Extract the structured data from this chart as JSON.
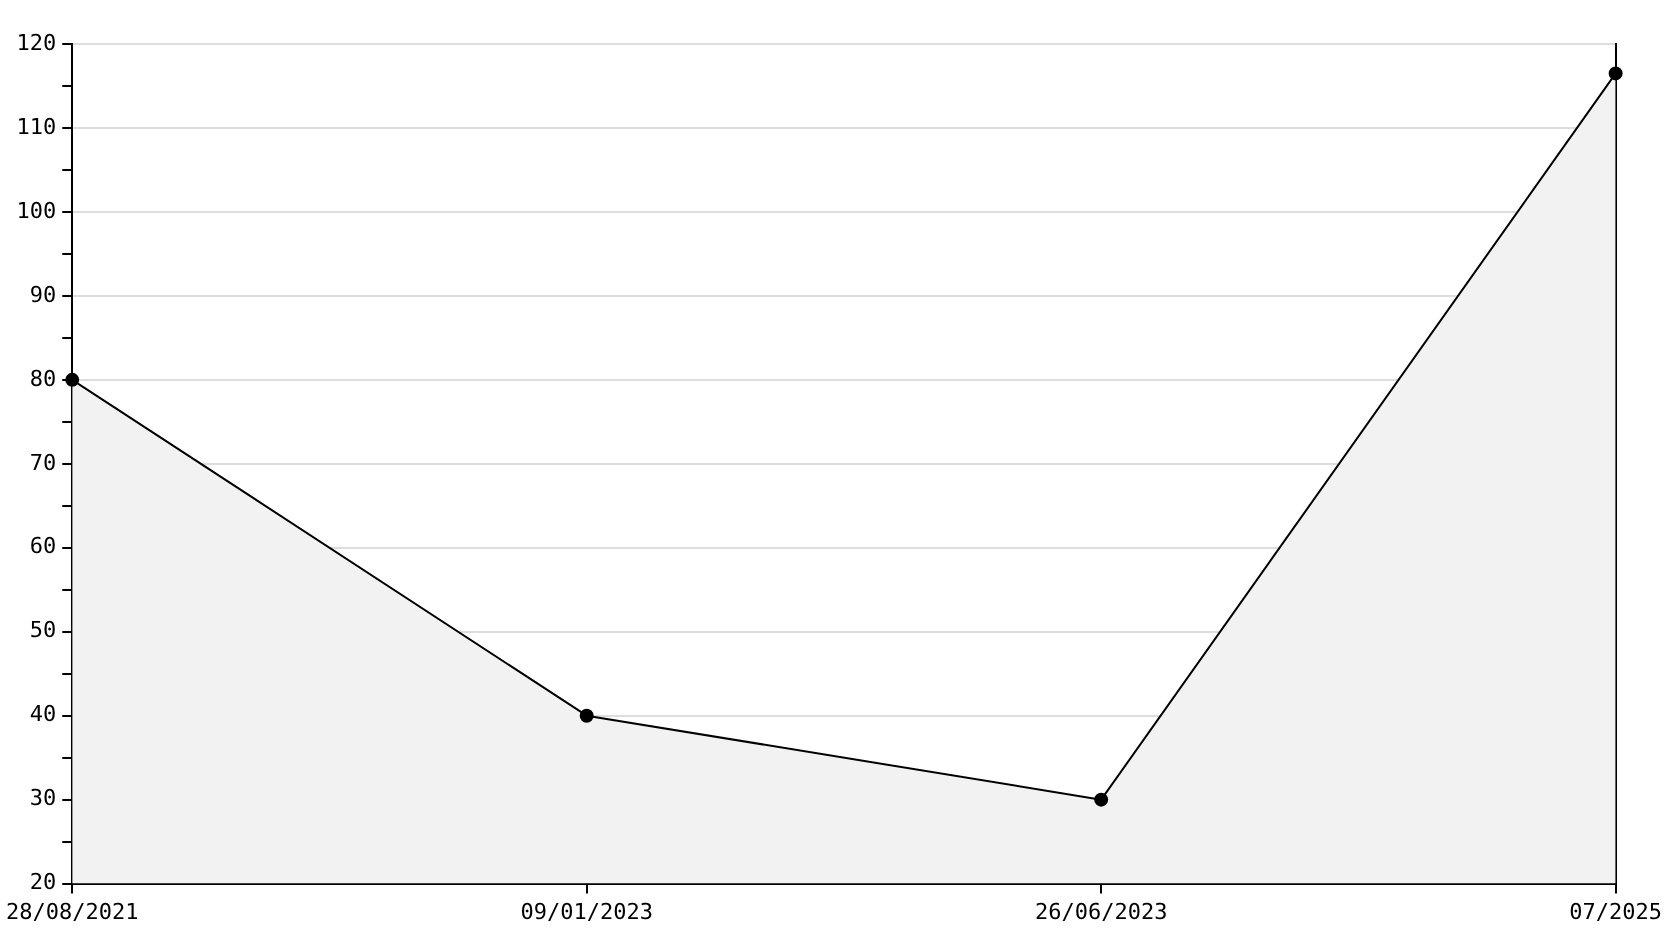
{
  "chart_data": {
    "type": "area",
    "categories": [
      "28/08/2021",
      "09/01/2023",
      "26/06/2023",
      "07/2025"
    ],
    "series": [
      {
        "color": "#000000",
        "values": [
          80,
          40,
          30,
          116.5
        ]
      }
    ],
    "ylim": [
      20,
      120
    ],
    "yticks": [
      20,
      {
        "value": 25,
        "label": null
      },
      30,
      {
        "value": 35,
        "label": null
      },
      40,
      {
        "value": 45,
        "label": null
      },
      50,
      {
        "value": 55,
        "label": null
      },
      60,
      {
        "value": 65,
        "label": null
      },
      70,
      {
        "value": 75,
        "label": null
      },
      80,
      {
        "value": 85,
        "label": null
      },
      90,
      {
        "value": 95,
        "label": null
      },
      100,
      {
        "value": 105,
        "label": null
      },
      110,
      {
        "value": 115,
        "label": null
      },
      120
    ],
    "grid": "y",
    "marker": "circle",
    "legend": false
  }
}
